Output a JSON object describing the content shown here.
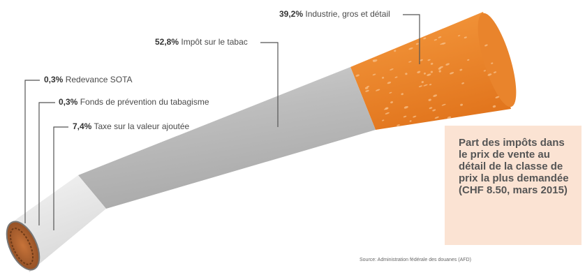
{
  "chart_data": {
    "type": "bar",
    "categories": [
      "Industrie, gros et détail",
      "Impôt sur le tabac",
      "Redevance SOTA",
      "Fonds de prévention du tabagisme",
      "Taxe sur la valeur ajoutée"
    ],
    "values": [
      39.2,
      52.8,
      0.3,
      0.3,
      7.4
    ],
    "labels": [
      {
        "pct": "39,2%",
        "text": "Industrie, gros et détail"
      },
      {
        "pct": "52,8%",
        "text": "Impôt sur le tabac"
      },
      {
        "pct": "0,3%",
        "text": "Redevance SOTA"
      },
      {
        "pct": "0,3%",
        "text": "Fonds de prévention du tabagisme"
      },
      {
        "pct": "7,4%",
        "text": "Taxe sur la valeur ajoutée"
      }
    ],
    "title": "Part des impôts dans le prix de vente au détail de la classe de prix la plus demandée (CHF 8.50, mars 2015)",
    "source": "Source: Administration fédérale des douanes (AFD)"
  },
  "colors": {
    "filter": "#f08a2e",
    "paper": "#bfbfbf",
    "paper_light": "#e9e9e9",
    "tobacco": "#b5652e",
    "info_box": "#fbe3d3",
    "leader_line": "#555555"
  }
}
